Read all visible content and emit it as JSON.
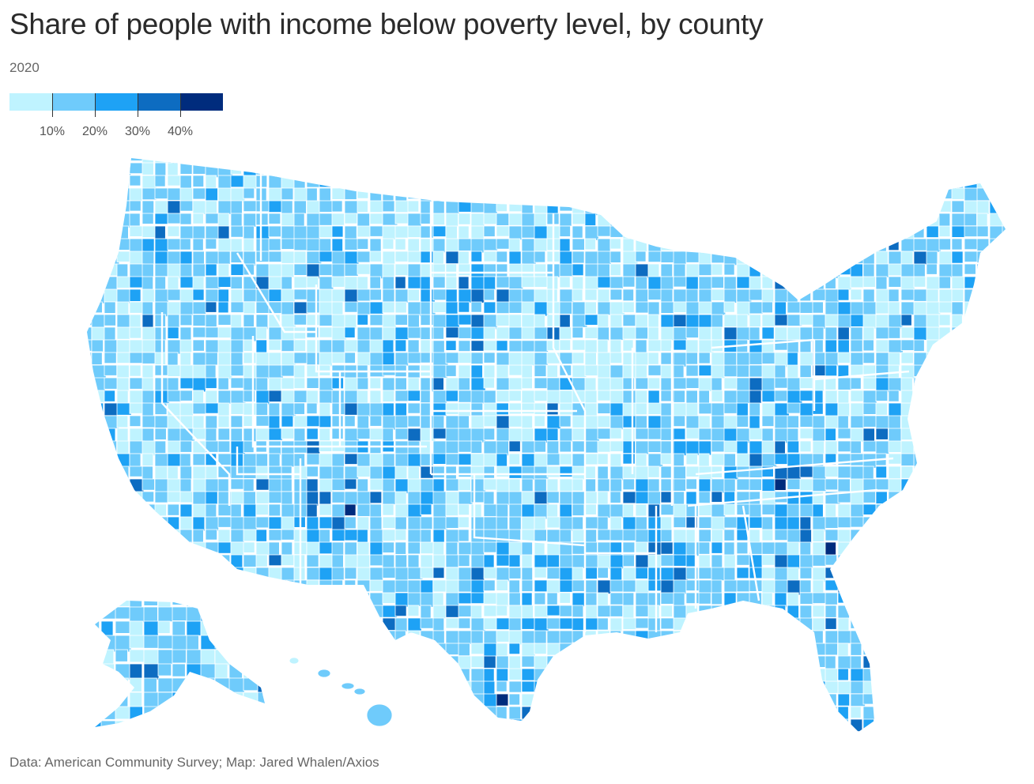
{
  "title": "Share of people with income below poverty level, by county",
  "subtitle": "2020",
  "legend": {
    "colors": [
      "#bff3ff",
      "#6fcbfb",
      "#1ea2f5",
      "#0d6cc1",
      "#002c7d"
    ],
    "tick_labels": [
      "10%",
      "20%",
      "30%",
      "40%"
    ]
  },
  "credit": "Data: American Community Survey; Map: Jared Whalen/Axios"
}
